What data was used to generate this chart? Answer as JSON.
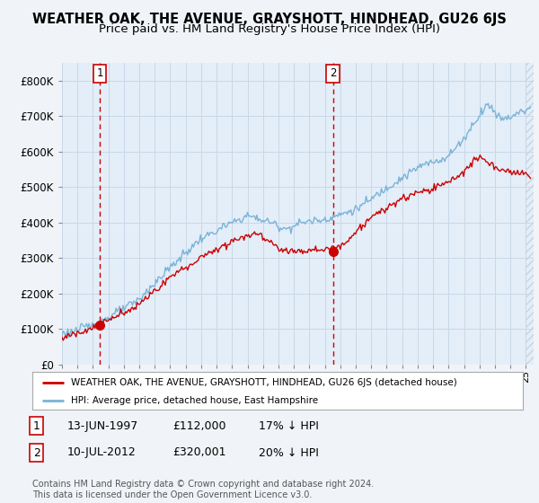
{
  "title": "WEATHER OAK, THE AVENUE, GRAYSHOTT, HINDHEAD, GU26 6JS",
  "subtitle": "Price paid vs. HM Land Registry's House Price Index (HPI)",
  "ylim": [
    0,
    850000
  ],
  "yticks": [
    0,
    100000,
    200000,
    300000,
    400000,
    500000,
    600000,
    700000,
    800000
  ],
  "ytick_labels": [
    "£0",
    "£100K",
    "£200K",
    "£300K",
    "£400K",
    "£500K",
    "£600K",
    "£700K",
    "£800K"
  ],
  "xlim_start": 1995.0,
  "xlim_end": 2025.5,
  "sale1_x": 1997.44,
  "sale1_y": 112000,
  "sale2_x": 2012.52,
  "sale2_y": 320001,
  "legend_line1": "WEATHER OAK, THE AVENUE, GRAYSHOTT, HINDHEAD, GU26 6JS (detached house)",
  "legend_line2": "HPI: Average price, detached house, East Hampshire",
  "table_row1": [
    "1",
    "13-JUN-1997",
    "£112,000",
    "17% ↓ HPI"
  ],
  "table_row2": [
    "2",
    "10-JUL-2012",
    "£320,001",
    "20% ↓ HPI"
  ],
  "footer": "Contains HM Land Registry data © Crown copyright and database right 2024.\nThis data is licensed under the Open Government Licence v3.0.",
  "hpi_color": "#7ab3d8",
  "sale_color": "#cc0000",
  "bg_color": "#f0f4f8",
  "plot_bg": "#e4eef8",
  "grid_color": "#c8d8e8",
  "title_fontsize": 10.5,
  "subtitle_fontsize": 9.5,
  "hatch_color": "#c8d4e0"
}
